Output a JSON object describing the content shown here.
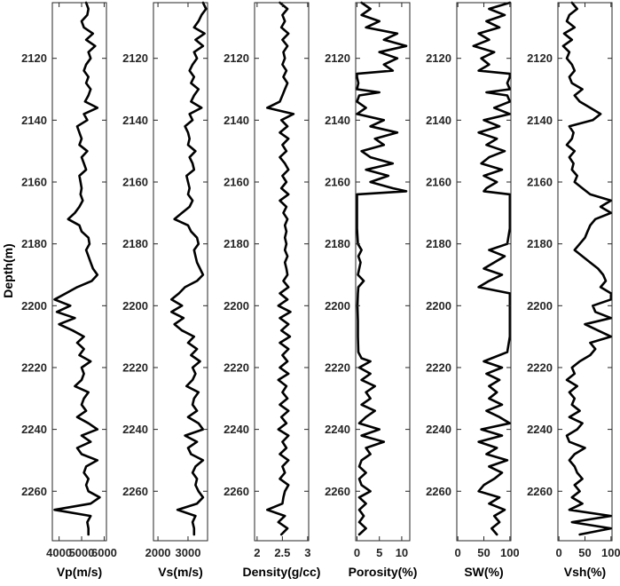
{
  "chart_data": {
    "type": "line",
    "y_axis": {
      "label": "Depth(m)",
      "range": [
        2102,
        2276
      ],
      "ticks": [
        2120,
        2140,
        2160,
        2180,
        2200,
        2220,
        2240,
        2260
      ],
      "reversed": true
    },
    "grid": false,
    "tracks": [
      {
        "name": "Vp(m/s)",
        "xlabel": "Vp(m/s)",
        "xlim": [
          3700,
          6100
        ],
        "xticks": [
          4000,
          5000,
          6000
        ],
        "depth": [
          2102,
          2104,
          2106,
          2108,
          2110,
          2112,
          2114,
          2116,
          2118,
          2120,
          2122,
          2124,
          2126,
          2128,
          2130,
          2132,
          2134,
          2136,
          2138,
          2140,
          2142,
          2144,
          2146,
          2148,
          2150,
          2152,
          2154,
          2156,
          2158,
          2160,
          2162,
          2164,
          2166,
          2168,
          2170,
          2172,
          2174,
          2176,
          2178,
          2180,
          2182,
          2184,
          2186,
          2188,
          2190,
          2192,
          2194,
          2196,
          2198,
          2200,
          2202,
          2204,
          2206,
          2208,
          2210,
          2212,
          2214,
          2216,
          2218,
          2220,
          2222,
          2224,
          2226,
          2228,
          2230,
          2232,
          2234,
          2236,
          2238,
          2240,
          2242,
          2244,
          2246,
          2248,
          2250,
          2252,
          2254,
          2256,
          2258,
          2260,
          2262,
          2264,
          2266,
          2268,
          2270,
          2272,
          2274
        ],
        "values": [
          5200,
          5300,
          5250,
          5000,
          5100,
          5500,
          5200,
          5600,
          5300,
          5400,
          5200,
          5100,
          5300,
          5200,
          5400,
          5300,
          5150,
          5700,
          5100,
          5250,
          4800,
          4900,
          5000,
          4900,
          5250,
          5000,
          5100,
          5200,
          4900,
          4950,
          5000,
          4950,
          5050,
          4900,
          4700,
          4400,
          4900,
          5000,
          5300,
          5350,
          5200,
          5300,
          5400,
          5500,
          5700,
          5450,
          4800,
          4300,
          3800,
          4500,
          3900,
          4700,
          4000,
          4600,
          5100,
          4800,
          5100,
          4900,
          5400,
          5000,
          5100,
          5000,
          4700,
          5300,
          5100,
          5000,
          5200,
          4800,
          5300,
          5700,
          5000,
          5400,
          4800,
          5000,
          5700,
          5200,
          5100,
          5300,
          5200,
          5300,
          5800,
          5400,
          3800,
          5400,
          5250,
          5300,
          5300
        ]
      },
      {
        "name": "Vs(m/s)",
        "xlabel": "Vs(m/s)",
        "xlim": [
          1850,
          3650
        ],
        "xticks": [
          2000,
          3000
        ],
        "depth": [
          2102,
          2104,
          2106,
          2108,
          2110,
          2112,
          2114,
          2116,
          2118,
          2120,
          2122,
          2124,
          2126,
          2128,
          2130,
          2132,
          2134,
          2136,
          2138,
          2140,
          2142,
          2144,
          2146,
          2148,
          2150,
          2152,
          2154,
          2156,
          2158,
          2160,
          2162,
          2164,
          2166,
          2168,
          2170,
          2172,
          2174,
          2176,
          2178,
          2180,
          2182,
          2184,
          2186,
          2188,
          2190,
          2192,
          2194,
          2196,
          2198,
          2200,
          2202,
          2204,
          2206,
          2208,
          2210,
          2212,
          2214,
          2216,
          2218,
          2220,
          2222,
          2224,
          2226,
          2228,
          2230,
          2232,
          2234,
          2236,
          2238,
          2240,
          2242,
          2244,
          2246,
          2248,
          2250,
          2252,
          2254,
          2256,
          2258,
          2260,
          2262,
          2264,
          2266,
          2268,
          2270,
          2272,
          2274
        ],
        "values": [
          3500,
          3600,
          3450,
          3350,
          3200,
          3550,
          3250,
          3500,
          3200,
          3300,
          3150,
          3050,
          3200,
          3100,
          3350,
          3200,
          3100,
          3450,
          3050,
          3150,
          2900,
          3000,
          3050,
          3000,
          3250,
          3050,
          3150,
          3200,
          2950,
          3000,
          3050,
          3000,
          3150,
          3050,
          2800,
          2550,
          3000,
          3100,
          3300,
          3350,
          3200,
          3250,
          3300,
          3400,
          3500,
          3300,
          2900,
          2700,
          2450,
          2800,
          2450,
          2850,
          2550,
          2800,
          3200,
          3000,
          3300,
          3100,
          3400,
          3150,
          3250,
          3150,
          2950,
          3350,
          3200,
          3150,
          3300,
          3000,
          3350,
          3500,
          2900,
          3300,
          3000,
          3100,
          3500,
          3250,
          3150,
          3300,
          3250,
          3350,
          3500,
          3300,
          2650,
          3250,
          3150,
          3200,
          3200
        ]
      },
      {
        "name": "Density(g/cc)",
        "xlabel": "Density(g/cc)",
        "xlim": [
          1.95,
          3.02
        ],
        "xticks": [
          2,
          2.5,
          3
        ],
        "tick_labels": [
          "2",
          "2.5",
          "3"
        ],
        "depth": [
          2102,
          2104,
          2106,
          2108,
          2110,
          2112,
          2114,
          2116,
          2118,
          2120,
          2122,
          2124,
          2126,
          2128,
          2130,
          2132,
          2134,
          2136,
          2138,
          2140,
          2142,
          2144,
          2146,
          2148,
          2150,
          2152,
          2154,
          2156,
          2158,
          2160,
          2162,
          2164,
          2166,
          2168,
          2170,
          2172,
          2174,
          2176,
          2178,
          2180,
          2182,
          2184,
          2186,
          2188,
          2190,
          2192,
          2194,
          2196,
          2198,
          2200,
          2202,
          2204,
          2206,
          2208,
          2210,
          2212,
          2214,
          2216,
          2218,
          2220,
          2222,
          2224,
          2226,
          2228,
          2230,
          2232,
          2234,
          2236,
          2238,
          2240,
          2242,
          2244,
          2246,
          2248,
          2250,
          2252,
          2254,
          2256,
          2258,
          2260,
          2262,
          2264,
          2266,
          2268,
          2270,
          2272,
          2274
        ],
        "values": [
          2.45,
          2.6,
          2.5,
          2.55,
          2.48,
          2.62,
          2.5,
          2.6,
          2.52,
          2.55,
          2.5,
          2.58,
          2.52,
          2.6,
          2.55,
          2.5,
          2.45,
          2.2,
          2.72,
          2.48,
          2.6,
          2.45,
          2.62,
          2.5,
          2.58,
          2.45,
          2.55,
          2.62,
          2.5,
          2.58,
          2.48,
          2.62,
          2.45,
          2.58,
          2.52,
          2.6,
          2.55,
          2.58,
          2.55,
          2.58,
          2.55,
          2.6,
          2.55,
          2.58,
          2.6,
          2.52,
          2.62,
          2.45,
          2.6,
          2.42,
          2.66,
          2.45,
          2.62,
          2.48,
          2.65,
          2.45,
          2.62,
          2.5,
          2.6,
          2.45,
          2.62,
          2.42,
          2.58,
          2.5,
          2.6,
          2.45,
          2.62,
          2.48,
          2.58,
          2.42,
          2.62,
          2.5,
          2.58,
          2.45,
          2.62,
          2.5,
          2.55,
          2.45,
          2.62,
          2.55,
          2.52,
          2.5,
          2.2,
          2.55,
          2.42,
          2.6,
          2.48
        ]
      },
      {
        "name": "Porosity(%)",
        "xlabel": "Porosity(%)",
        "xlim": [
          -0.3,
          11.8
        ],
        "xticks": [
          0,
          5,
          10
        ],
        "depth": [
          2102,
          2104,
          2106,
          2108,
          2110,
          2112,
          2114,
          2116,
          2118,
          2120,
          2122,
          2124,
          2125,
          2126,
          2128,
          2130,
          2131,
          2132,
          2134,
          2136,
          2138,
          2140,
          2142,
          2144,
          2146,
          2148,
          2150,
          2152,
          2154,
          2156,
          2158,
          2160,
          2162,
          2163,
          2164,
          2166,
          2170,
          2175,
          2180,
          2182,
          2184,
          2186,
          2190,
          2192,
          2194,
          2196,
          2200,
          2205,
          2210,
          2215,
          2217,
          2218,
          2220,
          2222,
          2224,
          2226,
          2228,
          2230,
          2232,
          2234,
          2236,
          2238,
          2240,
          2242,
          2244,
          2246,
          2248,
          2250,
          2252,
          2254,
          2256,
          2258,
          2260,
          2262,
          2264,
          2266,
          2268,
          2270,
          2272,
          2274
        ],
        "values": [
          1,
          3,
          1,
          5,
          2,
          9,
          6,
          11,
          5,
          9,
          6,
          8,
          0,
          0,
          0.3,
          0,
          5,
          0.5,
          0,
          2,
          0,
          6,
          3,
          9,
          4,
          6,
          1,
          3,
          8,
          2,
          7,
          3,
          8,
          11,
          0,
          0,
          0,
          0,
          0.2,
          1,
          0.3,
          0.8,
          0.2,
          1.5,
          0.3,
          0.2,
          0.1,
          0.2,
          0.2,
          0.3,
          1,
          3,
          0.5,
          3,
          1,
          4,
          2,
          3,
          1,
          4,
          2,
          0.5,
          5,
          1,
          6,
          2,
          3,
          1,
          0.5,
          2,
          0.5,
          1,
          3,
          0.5,
          2,
          0.5,
          1.5,
          0.5,
          2,
          0.5
        ]
      },
      {
        "name": "SW(%)",
        "xlabel": "SW(%)",
        "xlim": [
          -2,
          102
        ],
        "xticks": [
          0,
          50,
          100
        ],
        "depth": [
          2102,
          2104,
          2106,
          2108,
          2110,
          2112,
          2114,
          2116,
          2118,
          2120,
          2122,
          2124,
          2125,
          2126,
          2128,
          2130,
          2131,
          2132,
          2134,
          2136,
          2138,
          2140,
          2142,
          2144,
          2146,
          2148,
          2150,
          2152,
          2154,
          2156,
          2158,
          2160,
          2162,
          2163,
          2164,
          2166,
          2170,
          2175,
          2180,
          2182,
          2184,
          2186,
          2188,
          2190,
          2192,
          2194,
          2196,
          2200,
          2205,
          2210,
          2215,
          2217,
          2218,
          2220,
          2222,
          2224,
          2226,
          2228,
          2230,
          2232,
          2234,
          2236,
          2238,
          2240,
          2242,
          2244,
          2246,
          2248,
          2250,
          2252,
          2254,
          2256,
          2258,
          2260,
          2262,
          2264,
          2266,
          2268,
          2270,
          2272,
          2274
        ],
        "values": [
          100,
          60,
          90,
          55,
          80,
          40,
          60,
          30,
          70,
          45,
          60,
          40,
          100,
          100,
          95,
          100,
          55,
          95,
          100,
          70,
          100,
          50,
          80,
          40,
          75,
          55,
          90,
          60,
          45,
          85,
          50,
          75,
          55,
          50,
          100,
          100,
          100,
          100,
          95,
          60,
          90,
          70,
          50,
          85,
          60,
          40,
          100,
          100,
          100,
          100,
          95,
          65,
          50,
          85,
          55,
          80,
          60,
          75,
          60,
          85,
          55,
          80,
          100,
          45,
          85,
          40,
          75,
          55,
          95,
          60,
          85,
          70,
          50,
          40,
          80,
          60,
          90,
          70,
          80,
          65,
          75
        ]
      },
      {
        "name": "Vsh(%)",
        "xlabel": "Vsh(%)",
        "xlim": [
          -2,
          102
        ],
        "xticks": [
          0,
          50,
          100
        ],
        "depth": [
          2102,
          2104,
          2106,
          2108,
          2110,
          2112,
          2114,
          2116,
          2118,
          2120,
          2122,
          2124,
          2126,
          2128,
          2130,
          2132,
          2134,
          2136,
          2138,
          2140,
          2142,
          2144,
          2146,
          2148,
          2150,
          2152,
          2154,
          2156,
          2158,
          2160,
          2162,
          2164,
          2166,
          2168,
          2170,
          2172,
          2174,
          2176,
          2178,
          2180,
          2182,
          2184,
          2186,
          2188,
          2190,
          2192,
          2194,
          2196,
          2198,
          2200,
          2202,
          2204,
          2206,
          2208,
          2210,
          2212,
          2214,
          2216,
          2218,
          2220,
          2222,
          2224,
          2226,
          2228,
          2230,
          2232,
          2234,
          2236,
          2238,
          2240,
          2242,
          2244,
          2246,
          2248,
          2250,
          2252,
          2254,
          2256,
          2258,
          2260,
          2262,
          2264,
          2266,
          2268,
          2270,
          2272,
          2274
        ],
        "values": [
          25,
          35,
          20,
          15,
          30,
          10,
          25,
          8,
          20,
          15,
          25,
          30,
          20,
          25,
          45,
          30,
          40,
          60,
          80,
          65,
          20,
          28,
          25,
          15,
          30,
          20,
          28,
          25,
          35,
          30,
          45,
          60,
          100,
          80,
          100,
          70,
          60,
          55,
          50,
          40,
          30,
          45,
          60,
          75,
          85,
          90,
          80,
          100,
          100,
          65,
          70,
          100,
          50,
          75,
          100,
          60,
          70,
          60,
          40,
          25,
          30,
          15,
          35,
          20,
          30,
          25,
          40,
          20,
          45,
          35,
          15,
          20,
          50,
          30,
          20,
          30,
          35,
          45,
          30,
          40,
          25,
          45,
          20,
          100,
          25,
          100,
          40
        ]
      }
    ]
  }
}
